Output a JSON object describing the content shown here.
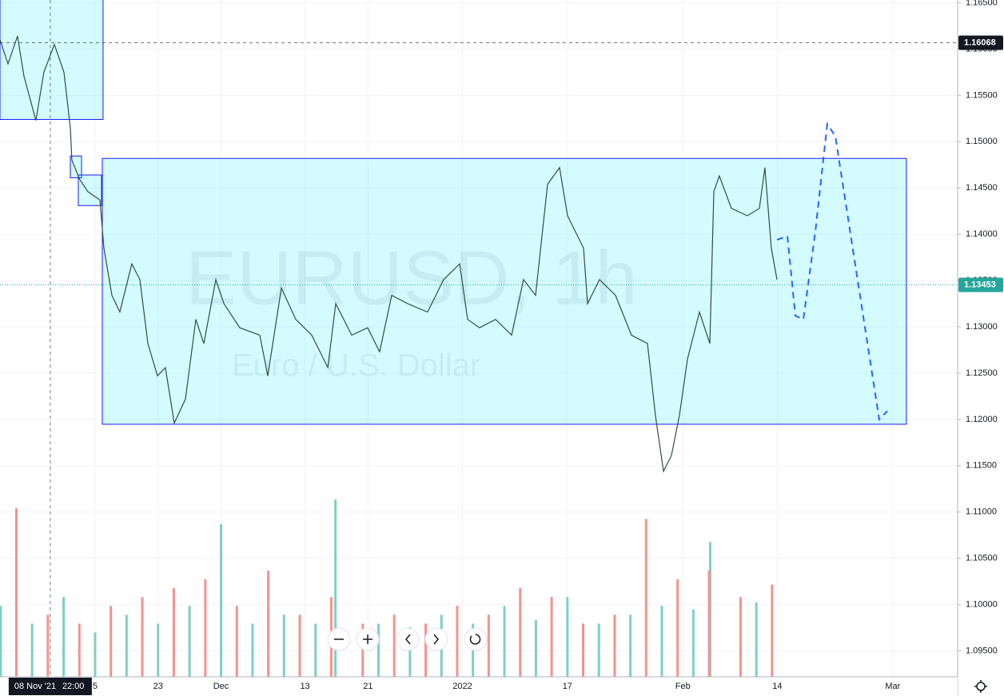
{
  "chart_data": {
    "type": "line",
    "title": "EURUSD, 1h",
    "subtitle": "Euro / U.S. Dollar",
    "xlim": [
      0.94,
      92.18
    ],
    "ylim": [
      1.0922,
      1.1653
    ],
    "xticks": [
      {
        "value": 10,
        "label": "5"
      },
      {
        "value": 16,
        "label": "23"
      },
      {
        "value": 22,
        "label": "Dec"
      },
      {
        "value": 30,
        "label": "13"
      },
      {
        "value": 36,
        "label": "21"
      },
      {
        "value": 45,
        "label": "2022"
      },
      {
        "value": 55,
        "label": "17"
      },
      {
        "value": 66,
        "label": "Feb"
      },
      {
        "value": 75,
        "label": "14"
      },
      {
        "value": 86,
        "label": "Mar"
      }
    ],
    "yticks": [
      {
        "value": 1.165,
        "label": "1.16500"
      },
      {
        "value": 1.16,
        "label": "1.16000"
      },
      {
        "value": 1.155,
        "label": "1.15500"
      },
      {
        "value": 1.15,
        "label": "1.15000"
      },
      {
        "value": 1.145,
        "label": "1.14500"
      },
      {
        "value": 1.14,
        "label": "1.14000"
      },
      {
        "value": 1.135,
        "label": "1.13500"
      },
      {
        "value": 1.13,
        "label": "1.13000"
      },
      {
        "value": 1.125,
        "label": "1.12500"
      },
      {
        "value": 1.12,
        "label": "1.12000"
      },
      {
        "value": 1.115,
        "label": "1.11500"
      },
      {
        "value": 1.11,
        "label": "1.11000"
      },
      {
        "value": 1.105,
        "label": "1.10500"
      },
      {
        "value": 1.1,
        "label": "1.10000"
      },
      {
        "value": 1.095,
        "label": "1.09500"
      }
    ],
    "grid": true,
    "series": [
      {
        "name": "EURUSD",
        "color": "#2f4f3f",
        "x": [
          0.94,
          1.7,
          2.61,
          3.22,
          4.36,
          5.12,
          6.12,
          7.03,
          7.64,
          7.79,
          8.55,
          9.31,
          10.46,
          10.84,
          11.6,
          12.36,
          13.5,
          14.27,
          15.03,
          15.94,
          16.7,
          17.54,
          18.61,
          19.6,
          20.36,
          21.5,
          22.27,
          23.79,
          25.69,
          26.45,
          27.75,
          29.12,
          30.64,
          32.17,
          32.93,
          34.45,
          35.97,
          37.11,
          38.26,
          39.78,
          41.68,
          43.21,
          44.73,
          45.49,
          46.63,
          48.16,
          49.68,
          50.82,
          51.97,
          53.11,
          54.25,
          55.01,
          56.54,
          56.92,
          58.06,
          59.58,
          61.1,
          62.63,
          63.39,
          64.15,
          64.91,
          65.67,
          66.44,
          67.58,
          68.57,
          68.95,
          69.48,
          70.62,
          72.15,
          73.29,
          73.82,
          74.43,
          74.97
        ],
        "values": [
          1.161,
          1.1584,
          1.1614,
          1.1571,
          1.1523,
          1.1575,
          1.1605,
          1.1575,
          1.1515,
          1.148,
          1.1459,
          1.1446,
          1.1437,
          1.1385,
          1.1334,
          1.1316,
          1.1368,
          1.1351,
          1.1282,
          1.1247,
          1.1256,
          1.1196,
          1.1222,
          1.1308,
          1.1282,
          1.1351,
          1.1325,
          1.1299,
          1.1291,
          1.1247,
          1.1342,
          1.1308,
          1.1291,
          1.1256,
          1.1325,
          1.1291,
          1.1299,
          1.1273,
          1.1334,
          1.1325,
          1.1316,
          1.1351,
          1.1368,
          1.1308,
          1.1299,
          1.1308,
          1.1291,
          1.1351,
          1.1334,
          1.1454,
          1.1472,
          1.142,
          1.1385,
          1.1325,
          1.1351,
          1.1334,
          1.1291,
          1.1282,
          1.1204,
          1.1144,
          1.1161,
          1.1204,
          1.1265,
          1.1316,
          1.1282,
          1.1446,
          1.1463,
          1.1428,
          1.142,
          1.1428,
          1.1472,
          1.1385,
          1.1351
        ]
      },
      {
        "name": "Projection",
        "color": "#2962ff",
        "dashed": true,
        "x": [
          74.97,
          75.96,
          76.72,
          77.48,
          78.62,
          79.76,
          80.53,
          84.71,
          85.48
        ],
        "values": [
          1.1394,
          1.1398,
          1.1312,
          1.1308,
          1.1403,
          1.1519,
          1.1506,
          1.12,
          1.1209
        ]
      }
    ],
    "zones": [
      {
        "x": [
          0.94,
          10.76
        ],
        "y": [
          1.1524,
          1.166
        ]
      },
      {
        "x": [
          7.64,
          8.71
        ],
        "y": [
          1.1461,
          1.14845
        ]
      },
      {
        "x": [
          8.4,
          10.61
        ],
        "y": [
          1.1431,
          1.1464
        ]
      },
      {
        "x": [
          10.69,
          87.3
        ],
        "y": [
          1.11948,
          1.14819
        ]
      }
    ],
    "zone_color": "#00e5ff",
    "zone_border": "#1a1aff",
    "price_lines": [
      {
        "value": 1.16068,
        "color": "#131722",
        "style": "dashed"
      },
      {
        "value": 1.13453,
        "color": "#26a69a",
        "style": "dotted"
      }
    ],
    "crosshair": {
      "x": 5.73,
      "date": "08 Nov '21",
      "time": "22:00"
    },
    "vlim": [
      0,
      100
    ],
    "volume": [
      {
        "name": "up",
        "color": "#7fcfc6",
        "x": [
          1,
          4,
          7,
          10,
          13,
          16,
          19,
          22,
          25,
          28,
          31,
          32.9,
          37,
          40,
          43,
          46,
          49,
          52,
          55,
          58,
          61,
          64,
          67,
          68.6,
          73
        ],
        "values": [
          40,
          30,
          45,
          25,
          35,
          30,
          40,
          86,
          30,
          35,
          30,
          100,
          30,
          28,
          35,
          30,
          40,
          32,
          45,
          30,
          35,
          40,
          38,
          76,
          42
        ]
      },
      {
        "name": "down",
        "color": "#f5928e",
        "x": [
          2.5,
          5.5,
          8.5,
          11.5,
          14.5,
          17.5,
          20.5,
          23.5,
          26.5,
          29.5,
          32.5,
          35.5,
          38.5,
          41.5,
          44.5,
          47.5,
          50.5,
          53.5,
          56.5,
          59.5,
          62.5,
          65.5,
          68.5,
          71.5,
          74.5
        ],
        "values": [
          95,
          35,
          30,
          40,
          45,
          50,
          55,
          40,
          60,
          35,
          45,
          30,
          35,
          30,
          40,
          35,
          50,
          45,
          30,
          35,
          89,
          55,
          60,
          45,
          52
        ]
      }
    ]
  }
}
